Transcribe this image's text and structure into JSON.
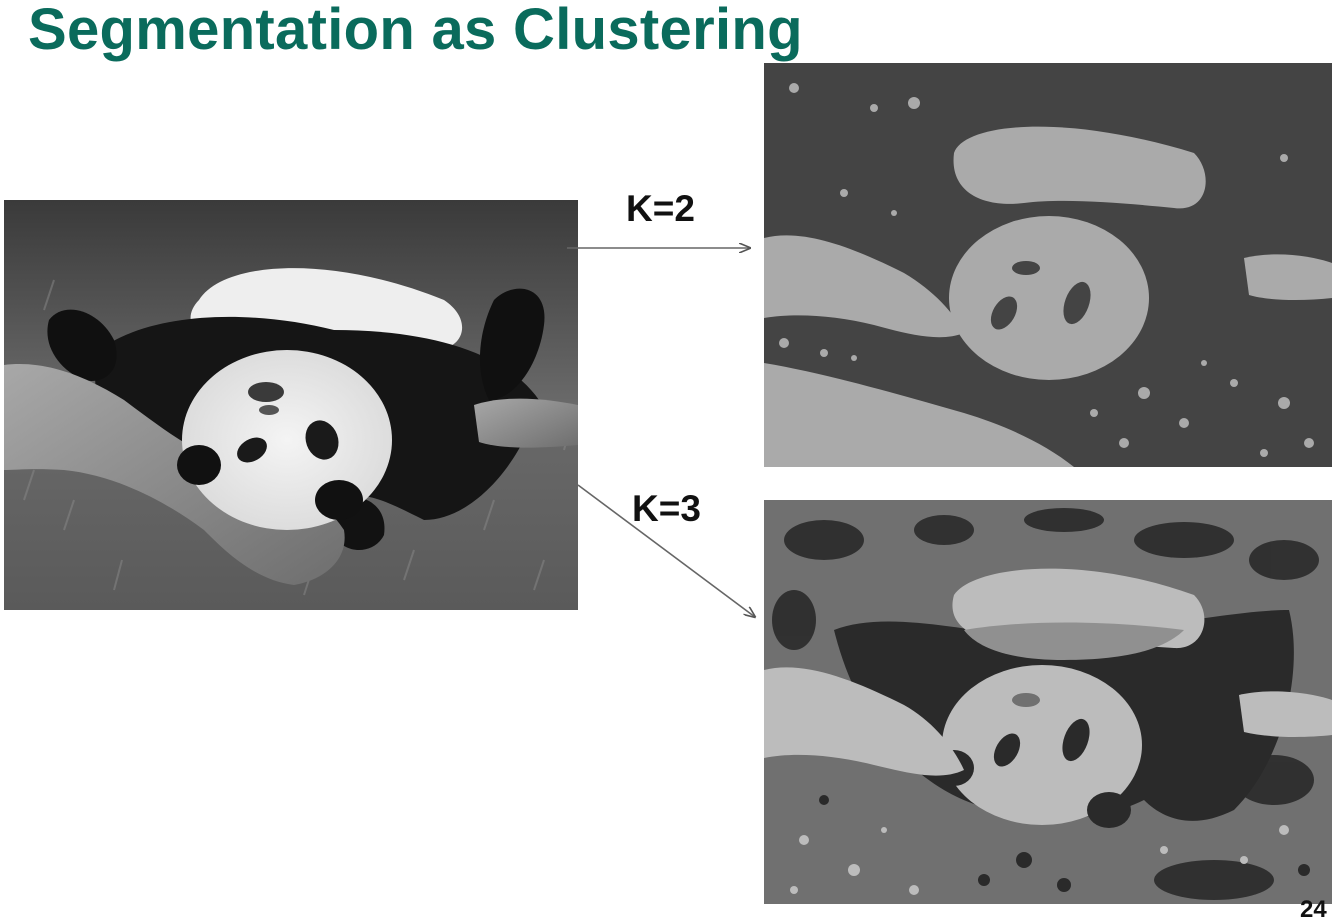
{
  "slide": {
    "title": "Segmentation as Clustering",
    "page_number": "24"
  },
  "results": [
    {
      "label": "K=2"
    },
    {
      "label": "K=3"
    }
  ],
  "colors": {
    "title": "#0a6b5c",
    "k2_dark": "#444444",
    "k2_light": "#aaaaaa",
    "k3_dark": "#2a2a2a",
    "k3_mid": "#707070",
    "k3_light": "#bcbcbc"
  }
}
